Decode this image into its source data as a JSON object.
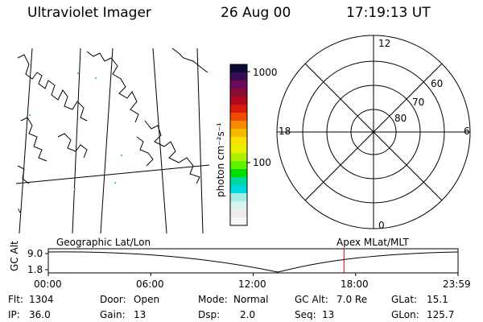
{
  "header": {
    "title": "Ultraviolet Imager",
    "date": "26 Aug 00",
    "time": "17:19:13 UT"
  },
  "geo_map": {
    "label": "Geographic Lat/Lon",
    "edge_mark": "v"
  },
  "colorbar": {
    "unit_label": "photon cm⁻²s⁻¹",
    "ticks": [
      "1000",
      "100"
    ],
    "colors": [
      "#0a0a33",
      "#3a0a55",
      "#6a0a5a",
      "#8a0a33",
      "#b00a1a",
      "#d81a0a",
      "#f04a00",
      "#f88a00",
      "#f8b800",
      "#f8e000",
      "#e8f000",
      "#b0f000",
      "#60f000",
      "#00e000",
      "#00d8a0",
      "#00d8e0",
      "#a0eee8",
      "#d8f2ee",
      "#ececec",
      "#f7f7f7"
    ]
  },
  "polar_plot": {
    "label": "Apex MLat/MLT",
    "mlt_labels": {
      "top": "12",
      "bottom": "0",
      "left": "18",
      "right": "6"
    },
    "mlat_labels": [
      "60",
      "70",
      "80"
    ]
  },
  "timeline": {
    "axis_label": "GC Alt",
    "y_ticks": [
      "9.0",
      "1.8"
    ],
    "x_ticks": [
      "00:00",
      "06:00",
      "12:00",
      "18:00",
      "23:59"
    ],
    "current_fraction": 0.7216,
    "current_color": "#cc0000"
  },
  "info": {
    "flt_label": "Flt:",
    "flt_value": "1304",
    "ip_label": "IP:",
    "ip_value": "36.0",
    "door_label": "Door:",
    "door_value": "Open",
    "gain_label": "Gain:",
    "gain_value": "13",
    "mode_label": "Mode:",
    "mode_value": "Normal",
    "dsp_label": "Dsp:",
    "dsp_value": "2.0",
    "gcalt_label": "GC Alt:",
    "gcalt_value": "7.0 Re",
    "seq_label": "Seq:",
    "seq_value": "13",
    "glat_label": "GLat:",
    "glat_value": "15.1",
    "glon_label": "GLon:",
    "glon_value": "125.7"
  }
}
